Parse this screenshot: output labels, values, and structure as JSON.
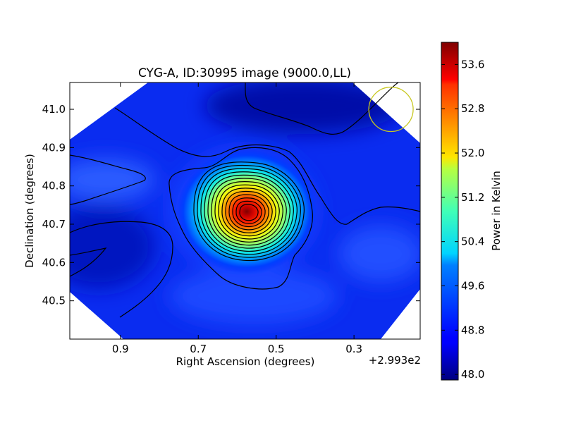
{
  "chart_data": {
    "type": "heatmap",
    "title": "CYG-A, ID:30995 image (9000.0,LL)",
    "xlabel": "Right Ascension (degrees)",
    "ylabel": "Declination (degrees)",
    "x_offset_label": "+2.993e2",
    "x_offset": 299.3,
    "xlim": [
      1.03,
      0.13
    ],
    "ylim": [
      40.4,
      41.07
    ],
    "x_ticks": [
      0.9,
      0.7,
      0.5,
      0.3
    ],
    "x_tick_labels": [
      "0.9",
      "0.7",
      "0.5",
      "0.3"
    ],
    "y_ticks": [
      40.5,
      40.6,
      40.7,
      40.8,
      40.9,
      41.0
    ],
    "y_tick_labels": [
      "40.5",
      "40.6",
      "40.7",
      "40.8",
      "40.9",
      "41.0"
    ],
    "peak": {
      "ra": 0.57,
      "dec": 40.73,
      "value": 53.9
    },
    "background_value": 48.6,
    "beam": {
      "ra": 0.205,
      "dec": 41.0,
      "radius_deg": 0.057,
      "color": "#c8c820"
    },
    "contour_levels": [
      48.4,
      48.7,
      49.0,
      49.3,
      49.6,
      49.9,
      50.2,
      50.5,
      50.8,
      51.1,
      51.4,
      51.7,
      52.0,
      52.3,
      52.6,
      52.9,
      53.2,
      53.5
    ],
    "colorbar": {
      "label": "Power in Kelvin",
      "vmin": 47.9,
      "vmax": 54.0,
      "ticks": [
        48.0,
        48.8,
        49.6,
        50.4,
        51.2,
        52.0,
        52.8,
        53.6
      ],
      "tick_labels": [
        "48.0",
        "48.8",
        "49.6",
        "50.4",
        "51.2",
        "52.0",
        "52.8",
        "53.6"
      ]
    },
    "colormap": "jet"
  }
}
